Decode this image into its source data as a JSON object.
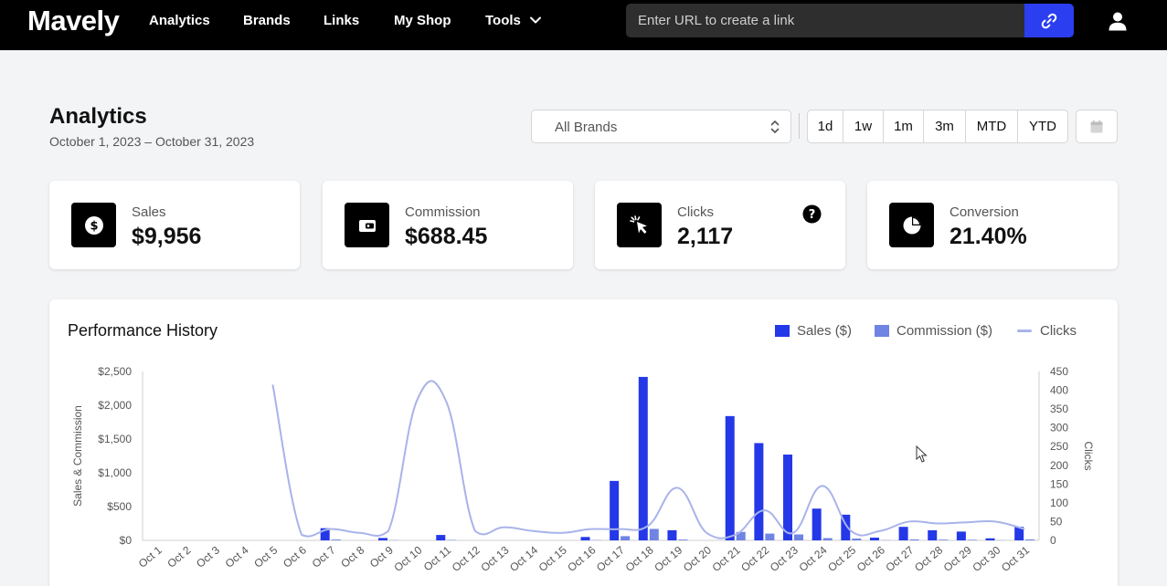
{
  "nav": {
    "logo": "Mavely",
    "items": [
      "Analytics",
      "Brands",
      "Links",
      "My Shop",
      "Tools"
    ],
    "url_placeholder": "Enter URL to create a link"
  },
  "header": {
    "title": "Analytics",
    "date_range": "October 1, 2023 – October 31, 2023",
    "brand_select": "All Brands",
    "ranges": [
      "1d",
      "1w",
      "1m",
      "3m",
      "MTD",
      "YTD"
    ]
  },
  "cards": [
    {
      "label": "Sales",
      "value": "$9,956",
      "icon": "dollar-icon"
    },
    {
      "label": "Commission",
      "value": "$688.45",
      "icon": "wallet-icon"
    },
    {
      "label": "Clicks",
      "value": "2,117",
      "icon": "cursor-click-icon"
    },
    {
      "label": "Conversion",
      "value": "21.40%",
      "icon": "pie-chart-icon"
    }
  ],
  "colors": {
    "sales": "#2438e8",
    "commission": "#6f84e3",
    "clicks": "#a9b3ea",
    "accent": "#2b3ef0"
  },
  "chart_data": {
    "type": "bar",
    "title": "Performance History",
    "legend": [
      "Sales ($)",
      "Commission ($)",
      "Clicks"
    ],
    "legend_position": "top-right",
    "ylabel": "Sales & Commission",
    "y2label": "Clicks",
    "ylim": [
      0,
      2500
    ],
    "y2lim": [
      0,
      450
    ],
    "yticks": [
      "$0",
      "$500",
      "$1,000",
      "$1,500",
      "$2,000",
      "$2,500"
    ],
    "y2ticks": [
      "0",
      "50",
      "100",
      "150",
      "200",
      "250",
      "300",
      "350",
      "400",
      "450"
    ],
    "categories": [
      "Oct 1",
      "Oct 2",
      "Oct 3",
      "Oct 4",
      "Oct 5",
      "Oct 6",
      "Oct 7",
      "Oct 8",
      "Oct 9",
      "Oct 10",
      "Oct 11",
      "Oct 12",
      "Oct 13",
      "Oct 14",
      "Oct 15",
      "Oct 16",
      "Oct 17",
      "Oct 18",
      "Oct 19",
      "Oct 20",
      "Oct 21",
      "Oct 22",
      "Oct 23",
      "Oct 24",
      "Oct 25",
      "Oct 26",
      "Oct 27",
      "Oct 28",
      "Oct 29",
      "Oct 30",
      "Oct 31"
    ],
    "series": [
      {
        "name": "Sales ($)",
        "values": [
          0,
          0,
          0,
          0,
          0,
          0,
          180,
          0,
          35,
          0,
          80,
          0,
          0,
          0,
          0,
          50,
          880,
          2420,
          150,
          0,
          1840,
          1440,
          1270,
          470,
          380,
          40,
          200,
          150,
          130,
          30,
          200
        ]
      },
      {
        "name": "Commission ($)",
        "values": [
          0,
          0,
          0,
          0,
          0,
          0,
          12,
          0,
          3,
          0,
          6,
          0,
          0,
          0,
          0,
          4,
          62,
          170,
          12,
          0,
          125,
          100,
          88,
          33,
          27,
          3,
          14,
          11,
          9,
          2,
          14
        ]
      },
      {
        "name": "Clicks",
        "values": [
          null,
          null,
          null,
          null,
          415,
          15,
          30,
          20,
          25,
          375,
          370,
          25,
          35,
          25,
          20,
          30,
          30,
          40,
          140,
          20,
          15,
          80,
          20,
          145,
          25,
          25,
          50,
          45,
          48,
          50,
          30
        ]
      }
    ],
    "grid": false
  }
}
